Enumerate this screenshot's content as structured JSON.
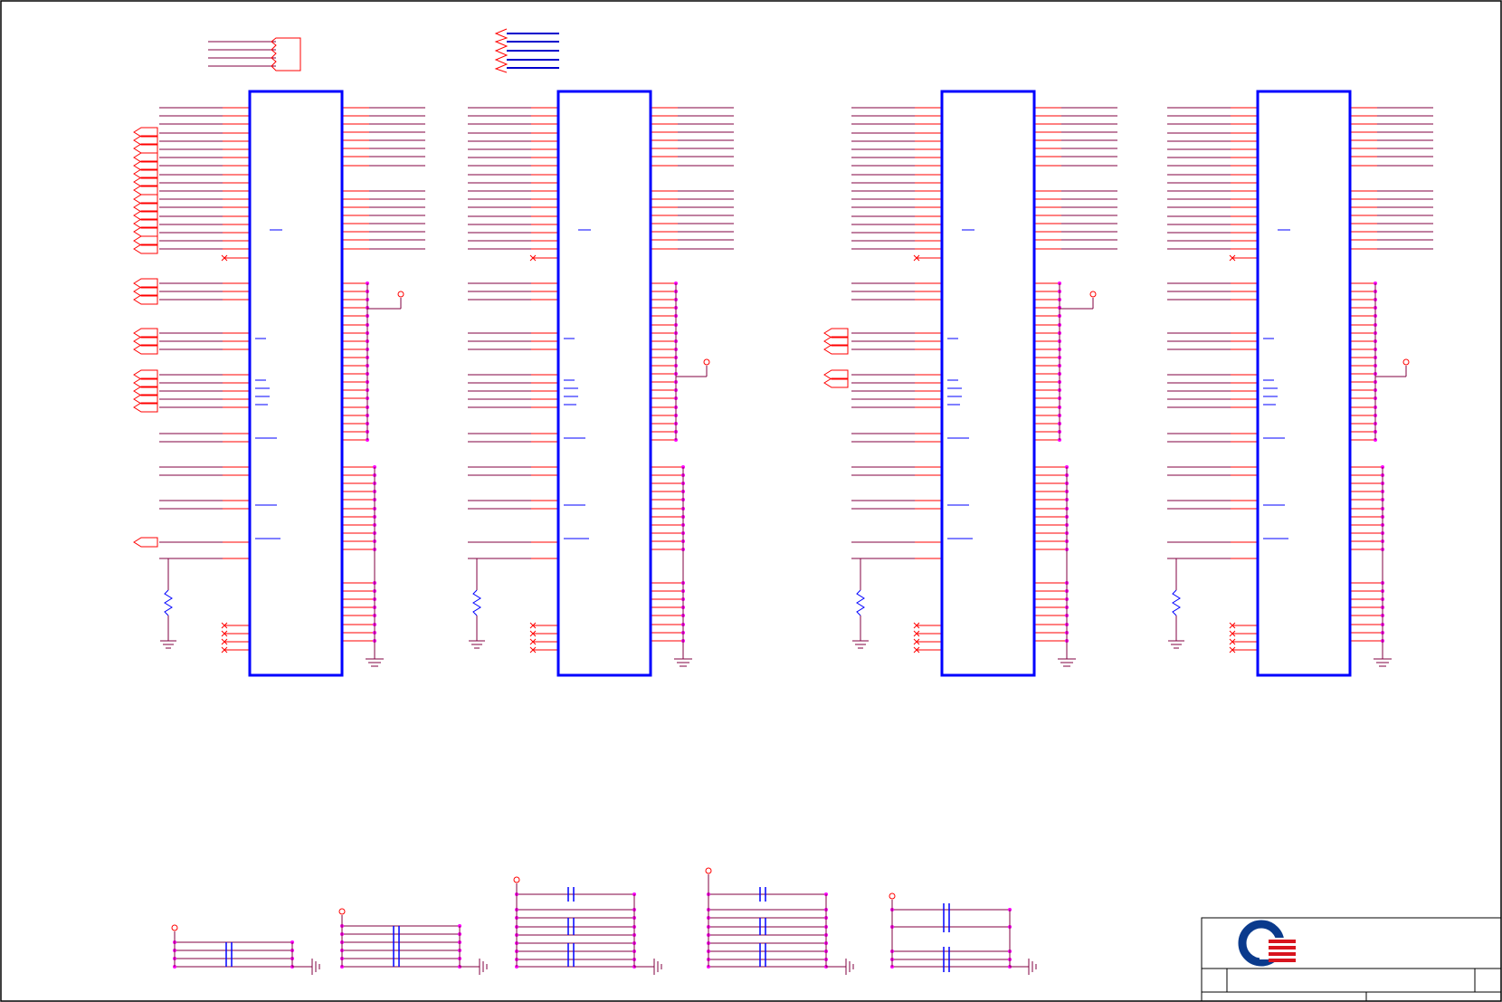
{
  "sheet": {
    "colors": {
      "background": "#ffffff",
      "wire": "#800040",
      "pin": "#ff0000",
      "chip_outline": "#0000ff",
      "junction": "#ff00ff",
      "passive": "#0000ff",
      "bus": "#0000cc",
      "border": "#000000",
      "logo_blue": "#0a3a8c",
      "logo_red": "#d8141e"
    },
    "chips": [
      {
        "id": "chip-1",
        "has_vcc_pin": true
      },
      {
        "id": "chip-2",
        "has_vcc_pin": true
      },
      {
        "id": "chip-3",
        "has_vcc_pin": true
      },
      {
        "id": "chip-4",
        "has_vcc_pin": true
      }
    ],
    "decoupling_groups": [
      {
        "id": "cap-group-1",
        "capacitor_count": 1
      },
      {
        "id": "cap-group-2",
        "capacitor_count": 1
      },
      {
        "id": "cap-group-3",
        "capacitor_count": 3
      },
      {
        "id": "cap-group-4",
        "capacitor_count": 3
      },
      {
        "id": "cap-group-5",
        "capacitor_count": 2
      }
    ],
    "title_block": {
      "logo_icon": "company-logo-icon",
      "text": ""
    }
  }
}
